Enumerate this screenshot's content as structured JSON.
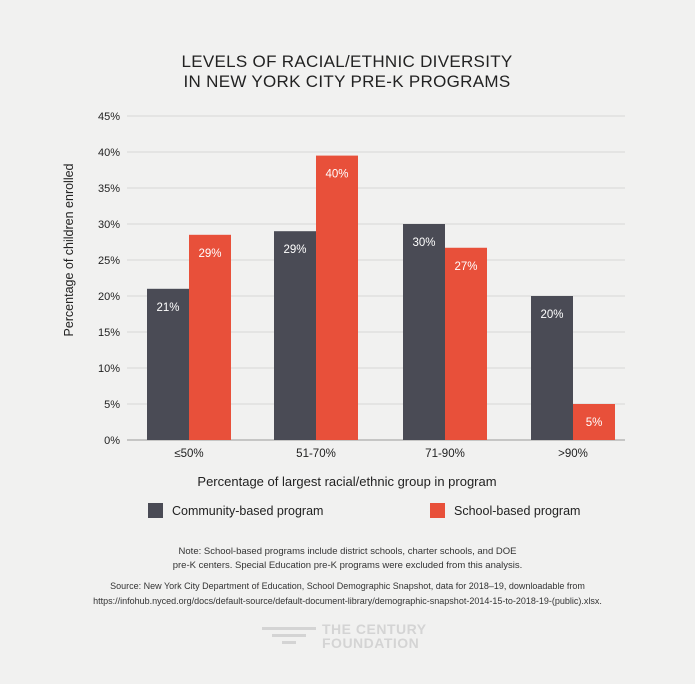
{
  "chart_data": {
    "type": "bar",
    "title_lines": [
      "LEVELS OF RACIAL/ETHNIC DIVERSITY",
      "IN NEW YORK CITY PRE-K PROGRAMS"
    ],
    "categories": [
      "≤50%",
      "51-70%",
      "71-90%",
      ">90%"
    ],
    "series": [
      {
        "name": "Community-based program",
        "color": "#4a4b55",
        "values": [
          21,
          29,
          30,
          20
        ],
        "labels": [
          "21%",
          "29%",
          "30%",
          "20%"
        ]
      },
      {
        "name": "School-based program",
        "color": "#e8503a",
        "values": [
          28.5,
          39.5,
          26.7,
          5
        ],
        "labels": [
          "29%",
          "40%",
          "27%",
          "5%"
        ]
      }
    ],
    "xlabel": "Percentage of largest racial/ethnic group in program",
    "ylabel": "Percentage of children enrolled",
    "ylim": [
      0,
      45
    ],
    "yticks": [
      0,
      5,
      10,
      15,
      20,
      25,
      30,
      35,
      40,
      45
    ],
    "ytick_labels": [
      "0%",
      "5%",
      "10%",
      "15%",
      "20%",
      "25%",
      "30%",
      "35%",
      "40%",
      "45%"
    ],
    "grid": true,
    "legend_position": "bottom"
  },
  "notes": {
    "note_line1": "Note: School-based programs include district schools, charter schools, and DOE",
    "note_line2": "pre-K centers. Special Education pre-K programs were excluded from this analysis.",
    "source_line1": "Source: New York City Department of Education, School Demographic Snapshot, data for 2018–19, downloadable from",
    "source_line2": "https://infohub.nyced.org/docs/default-source/default-document-library/demographic-snapshot-2014-15-to-2018-19-(public).xlsx."
  },
  "logo": {
    "line1": "THE CENTURY",
    "line2": "FOUNDATION"
  }
}
